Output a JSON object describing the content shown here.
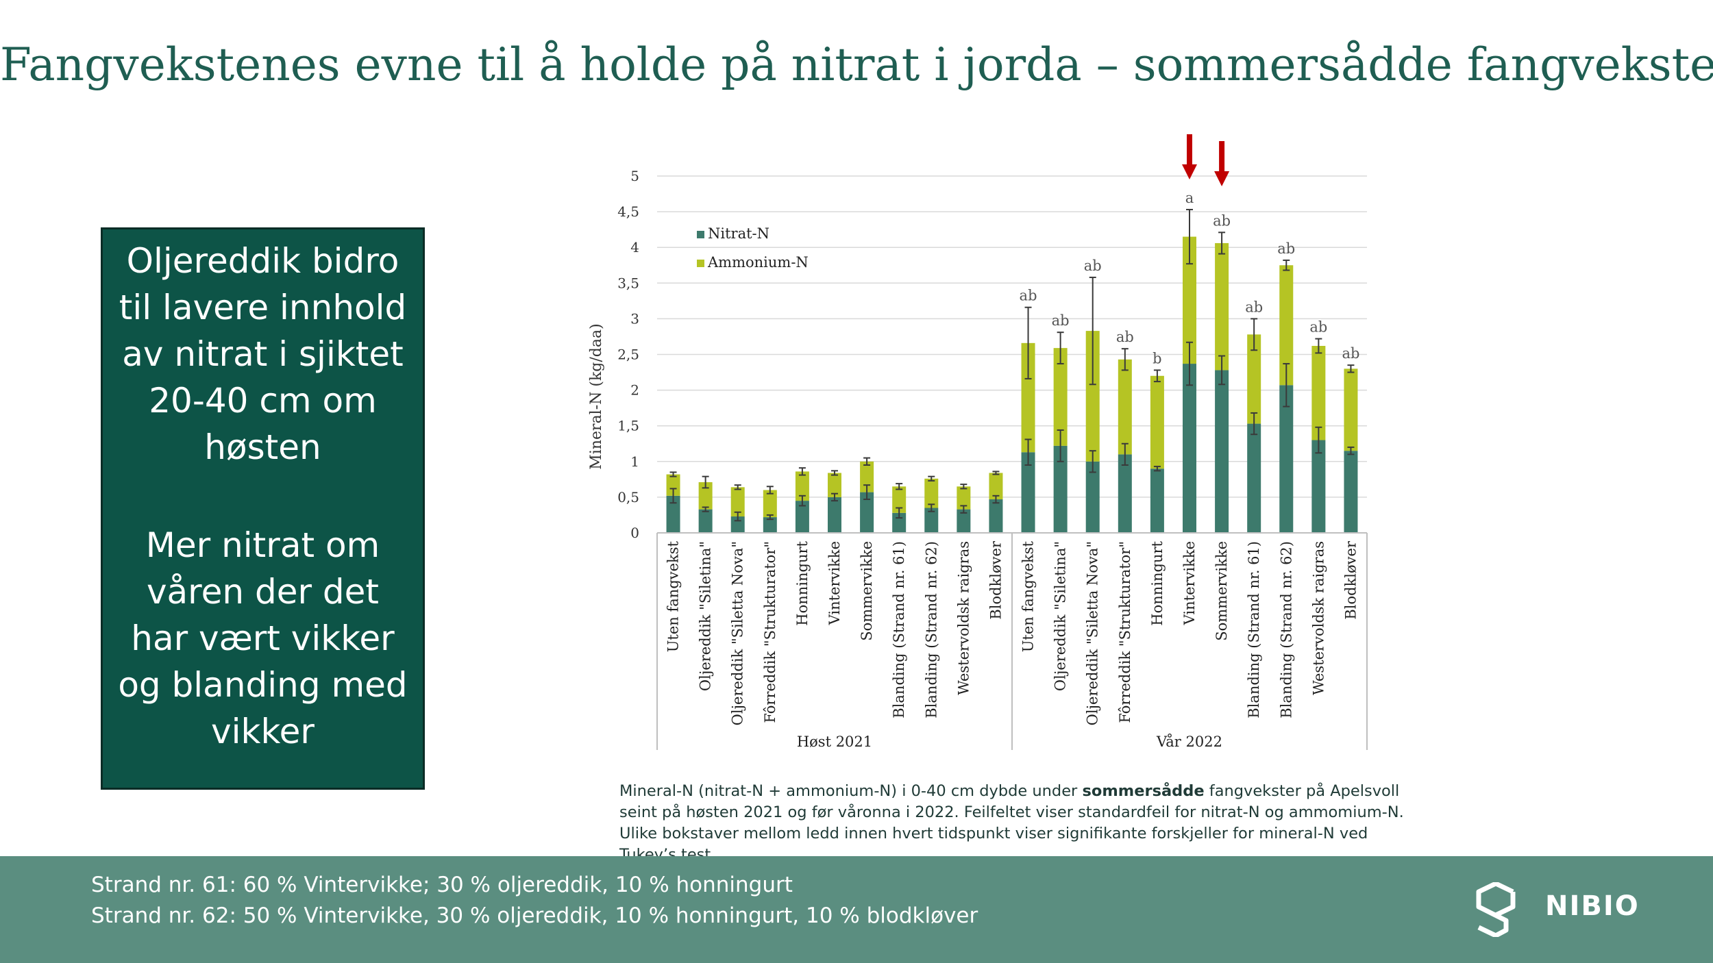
{
  "title": "Fangvekstenes evne til å holde på nitrat i jorda – sommersådde fangvekster",
  "callout": {
    "para1": [
      "Oljereddik bidro",
      "til lavere innhold",
      "av nitrat i sjiktet",
      "20-40 cm om",
      "høsten"
    ],
    "para2": [
      "Mer nitrat om",
      "våren der det",
      "har vært vikker",
      "og blanding med",
      "vikker"
    ]
  },
  "caption": {
    "part1": "Mineral-N (nitrat-N + ammonium-N) i 0-40 cm dybde under ",
    "bold": "sommersådde",
    "part2": " fangvekster på Apelsvoll seint på høsten 2021 og før våronna i 2022. Feilfeltet viser standardfeil for nitrat-N og ammomium-N. Ulike bokstaver mellom ledd innen hvert tidspunkt viser signifikante forskjeller for mineral-N ved Tukey’s test."
  },
  "footer": {
    "line1": "Strand nr. 61: 60 % Vintervikke; 30 % oljereddik, 10 % honningurt",
    "line2": "Strand nr. 62: 50 % Vintervikke, 30 % oljereddik, 10 % honningurt, 10 % blodkløver",
    "logo_text": "NIBIO",
    "logo_icon": "nibio-logo-icon"
  },
  "colors": {
    "title": "#1f5e52",
    "callout_bg": "#0d5447",
    "footer_bg": "#5b8e80",
    "nitrat": "#3d7a6c",
    "ammonium": "#b5c424",
    "arrow": "#c00000"
  },
  "chart_data": {
    "type": "bar",
    "stacked": true,
    "ylabel": "Mineral-N (kg/daa)",
    "ylim": [
      0,
      5
    ],
    "yticks": [
      "0",
      "0,5",
      "1",
      "1,5",
      "2",
      "2,5",
      "3",
      "3,5",
      "4",
      "4,5",
      "5"
    ],
    "legend": [
      "Nitrat-N",
      "Ammonium-N"
    ],
    "legend_position": "top-left",
    "groups": [
      {
        "label": "Høst 2021",
        "start": 0,
        "count": 11
      },
      {
        "label": "Vår 2022",
        "start": 11,
        "count": 11
      }
    ],
    "categories": [
      "Uten fangvekst",
      "Oljereddik \"Siletina\"",
      "Oljereddik \"Siletta Nova\"",
      "Fôrreddik \"Strukturator\"",
      "Honningurt",
      "Vintervikke",
      "Sommervikke",
      "Blanding (Strand nr. 61)",
      "Blanding (Strand nr. 62)",
      "Westervoldsk raigras",
      "Blodkløver",
      "Uten fangvekst",
      "Oljereddik \"Siletina\"",
      "Oljereddik \"Siletta Nova\"",
      "Fôrreddik \"Strukturator\"",
      "Honningurt",
      "Vintervikke",
      "Sommervikke",
      "Blanding (Strand nr. 61)",
      "Blanding (Strand nr. 62)",
      "Westervoldsk raigras",
      "Blodkløver"
    ],
    "series": [
      {
        "name": "Nitrat-N",
        "values": [
          0.52,
          0.33,
          0.23,
          0.22,
          0.45,
          0.5,
          0.57,
          0.28,
          0.35,
          0.33,
          0.47,
          1.13,
          1.22,
          1.0,
          1.1,
          0.9,
          2.37,
          2.28,
          1.53,
          2.07,
          1.3,
          1.15
        ],
        "errors": [
          0.1,
          0.03,
          0.06,
          0.03,
          0.07,
          0.05,
          0.1,
          0.07,
          0.05,
          0.05,
          0.05,
          0.18,
          0.22,
          0.15,
          0.15,
          0.03,
          0.3,
          0.2,
          0.15,
          0.3,
          0.18,
          0.05
        ]
      },
      {
        "name": "Ammonium-N",
        "values": [
          0.3,
          0.38,
          0.41,
          0.38,
          0.41,
          0.34,
          0.43,
          0.37,
          0.41,
          0.32,
          0.37,
          1.53,
          1.37,
          1.83,
          1.33,
          1.3,
          1.78,
          1.78,
          1.25,
          1.68,
          1.32,
          1.15
        ],
        "errors": [
          0.03,
          0.08,
          0.03,
          0.05,
          0.05,
          0.03,
          0.05,
          0.04,
          0.03,
          0.03,
          0.02,
          0.5,
          0.22,
          0.75,
          0.15,
          0.08,
          0.38,
          0.15,
          0.22,
          0.07,
          0.1,
          0.05
        ]
      }
    ],
    "significance_labels": [
      "",
      "",
      "",
      "",
      "",
      "",
      "",
      "",
      "",
      "",
      "",
      "ab",
      "ab",
      "ab",
      "ab",
      "b",
      "a",
      "ab",
      "ab",
      "ab",
      "ab",
      "ab"
    ],
    "highlight_arrows": [
      16,
      17
    ]
  }
}
